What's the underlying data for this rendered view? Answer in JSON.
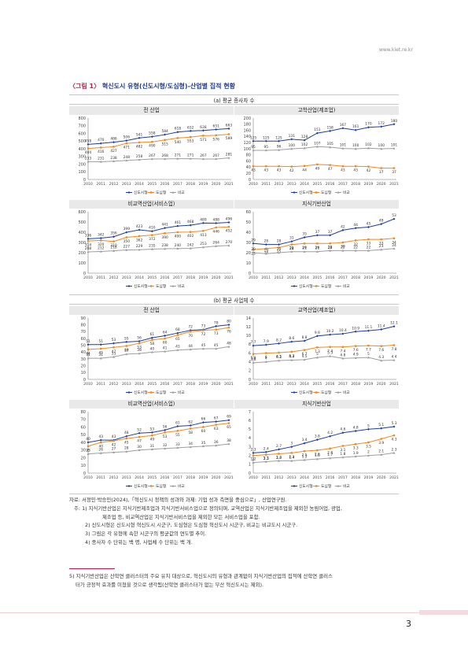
{
  "site": "www.kiet.re.kr",
  "figure": {
    "tag": "〈그림 1〉",
    "title": "혁신도시 유형(신도시형/도심형)-산업별 집적 현황"
  },
  "sections": {
    "a": "(a) 평균 종사자 수",
    "b": "(b) 평균 사업체 수"
  },
  "legend": [
    "신도시형",
    "도심형",
    "비교"
  ],
  "colors": {
    "s1": "#1f3d9a",
    "s2": "#f08a1e",
    "s3": "#9e9e9e"
  },
  "chart_data": [
    {
      "id": "a1",
      "type": "line",
      "title": "전 산업",
      "x": [
        "2010",
        "2011",
        "2012",
        "2013",
        "2014",
        "2015",
        "2016",
        "2017",
        "2018",
        "2019",
        "2020",
        "2021"
      ],
      "ylim": [
        0,
        800
      ],
      "yticks": [
        0,
        100,
        200,
        300,
        400,
        500,
        600,
        700,
        800
      ],
      "series": [
        {
          "name": "신도시형",
          "values": [
            458,
            470,
            486,
            506,
            541,
            558,
            584,
            618,
            632,
            638,
            651,
            663
          ]
        },
        {
          "name": "도심형",
          "values": [
            404,
            416,
            427,
            471,
            482,
            490,
            515,
            540,
            553,
            571,
            576,
            589
          ]
        },
        {
          "name": "비교",
          "values": [
            233,
            231,
            238,
            248,
            258,
            267,
            268,
            271,
            271,
            267,
            267,
            281
          ]
        }
      ]
    },
    {
      "id": "a2",
      "type": "line",
      "title": "고학산업(제조업)",
      "x": [
        "2010",
        "2011",
        "2012",
        "2013",
        "2014",
        "2015",
        "2016",
        "2017",
        "2018",
        "2019",
        "2020",
        "2021"
      ],
      "ylim": [
        0,
        200
      ],
      "yticks": [
        0,
        20,
        40,
        60,
        80,
        100,
        120,
        140,
        160,
        180,
        200
      ],
      "series": [
        {
          "name": "신도시형",
          "values": [
            125,
            125,
            125,
            131,
            128,
            151,
            158,
            167,
            161,
            170,
            172,
            180
          ]
        },
        {
          "name": "도심형",
          "values": [
            43,
            43,
            43,
            42,
            44,
            49,
            47,
            43,
            43,
            42,
            37,
            37
          ]
        },
        {
          "name": "비교",
          "values": [
            95,
            95,
            96,
            100,
            102,
            107,
            105,
            101,
            100,
            102,
            100,
            101
          ]
        }
      ]
    },
    {
      "id": "a3",
      "type": "line",
      "title": "비교역산업(서비스업)",
      "x": [
        "2010",
        "2011",
        "2012",
        "2013",
        "2014",
        "2015",
        "2016",
        "2017",
        "2018",
        "2019",
        "2020",
        "2021"
      ],
      "ylim": [
        0,
        600
      ],
      "yticks": [
        0,
        100,
        200,
        300,
        400,
        500,
        600
      ],
      "series": [
        {
          "name": "신도시형",
          "values": [
            336,
            342,
            356,
            399,
            423,
            410,
            441,
            461,
            468,
            489,
            488,
            496
          ]
        },
        {
          "name": "도심형",
          "values": [
            314,
            320,
            310,
            350,
            362,
            372,
            390,
            400,
            402,
            413,
            446,
            452
          ]
        },
        {
          "name": "비교",
          "values": [
            208,
            212,
            218,
            227,
            229,
            235,
            238,
            240,
            242,
            253,
            264,
            270
          ]
        }
      ]
    },
    {
      "id": "a4",
      "type": "line",
      "title": "지식기반산업",
      "x": [
        "2010",
        "2011",
        "2012",
        "2013",
        "2014",
        "2015",
        "2016",
        "2017",
        "2018",
        "2019",
        "2020",
        "2021"
      ],
      "ylim": [
        0,
        60
      ],
      "yticks": [
        0,
        10,
        20,
        30,
        40,
        50,
        60
      ],
      "series": [
        {
          "name": "신도시형",
          "values": [
            29,
            28,
            28,
            31,
            35,
            37,
            37,
            42,
            44,
            45,
            48,
            53
          ]
        },
        {
          "name": "도심형",
          "values": [
            23,
            24,
            25,
            28,
            29,
            29,
            29,
            30,
            32,
            33,
            33,
            34
          ]
        },
        {
          "name": "비교",
          "values": [
            20,
            19,
            20,
            21,
            21,
            21,
            22,
            22,
            22,
            22,
            23,
            24
          ]
        }
      ]
    },
    {
      "id": "b1",
      "type": "line",
      "title": "전 산업",
      "x": [
        "2010",
        "2011",
        "2012",
        "2013",
        "2014",
        "2015",
        "2016",
        "2017",
        "2018",
        "2019",
        "2020",
        "2021"
      ],
      "ylim": [
        0,
        90
      ],
      "yticks": [
        0,
        10,
        20,
        30,
        40,
        50,
        60,
        70,
        80,
        90
      ],
      "series": [
        {
          "name": "신도시형",
          "values": [
            51,
            51,
            53,
            55,
            56,
            61,
            64,
            68,
            72,
            73,
            78,
            80
          ]
        },
        {
          "name": "도심형",
          "values": [
            44,
            45,
            47,
            49,
            53,
            58,
            60,
            65,
            70,
            72,
            73,
            76
          ]
        },
        {
          "name": "비교",
          "values": [
            31,
            31,
            33,
            37,
            38,
            40,
            41,
            43,
            44,
            45,
            45,
            48
          ]
        }
      ]
    },
    {
      "id": "b2",
      "type": "line",
      "title": "교역산업(제조업)",
      "x": [
        "2010",
        "2011",
        "2012",
        "2013",
        "2014",
        "2015",
        "2016",
        "2017",
        "2018",
        "2019",
        "2020",
        "2021"
      ],
      "ylim": [
        0,
        14
      ],
      "yticks": [
        0,
        2,
        4,
        6,
        8,
        10,
        12,
        14
      ],
      "series": [
        {
          "name": "신도시형",
          "values": [
            7.7,
            7.9,
            8.2,
            8.6,
            8.8,
            9.9,
            10.2,
            10.4,
            10.9,
            11.1,
            11.4,
            12.1
          ]
        },
        {
          "name": "도심형",
          "values": [
            5.8,
            6.0,
            6.1,
            6.3,
            6.7,
            7.3,
            7.4,
            7.4,
            7.6,
            7.7,
            7.6,
            7.8
          ]
        },
        {
          "name": "비교",
          "values": [
            3.8,
            4.0,
            4.3,
            4.4,
            4.5,
            5.0,
            5.3,
            4.8,
            4.9,
            5.0,
            4.3,
            4.4
          ]
        }
      ]
    },
    {
      "id": "b3",
      "type": "line",
      "title": "비교역산업(서비스업)",
      "x": [
        "2010",
        "2011",
        "2012",
        "2013",
        "2014",
        "2015",
        "2016",
        "2017",
        "2018",
        "2019",
        "2020",
        "2021"
      ],
      "ylim": [
        0,
        80
      ],
      "yticks": [
        0,
        10,
        20,
        30,
        40,
        50,
        60,
        70,
        80
      ],
      "series": [
        {
          "name": "신도시형",
          "values": [
            40,
            43,
            43,
            48,
            52,
            53,
            56,
            61,
            62,
            66,
            67,
            69
          ]
        },
        {
          "name": "도심형",
          "values": [
            35,
            40,
            42,
            45,
            47,
            49,
            53,
            55,
            58,
            60,
            63,
            65
          ]
        },
        {
          "name": "비교",
          "values": [
            25,
            26,
            27,
            28,
            30,
            31,
            32,
            33,
            34,
            35,
            36,
            38
          ]
        }
      ]
    },
    {
      "id": "b4",
      "type": "line",
      "title": "지식기반산업",
      "x": [
        "2010",
        "2011",
        "2012",
        "2013",
        "2014",
        "2015",
        "2016",
        "2017",
        "2018",
        "2019",
        "2020",
        "2021"
      ],
      "ylim": [
        0,
        7
      ],
      "yticks": [
        0,
        1,
        2,
        3,
        4,
        5,
        6,
        7
      ],
      "series": [
        {
          "name": "신도시형",
          "values": [
            2.3,
            2.4,
            2.7,
            3.0,
            3.4,
            3.8,
            4.2,
            4.6,
            4.8,
            5.0,
            5.1,
            5.3
          ]
        },
        {
          "name": "도심형",
          "values": [
            2.0,
            2.1,
            2.2,
            2.3,
            2.5,
            2.6,
            2.8,
            3.1,
            3.3,
            3.5,
            3.9,
            4.3
          ]
        },
        {
          "name": "비교",
          "values": [
            1.2,
            1.3,
            1.4,
            1.4,
            1.5,
            1.6,
            1.7,
            1.8,
            1.9,
            2.0,
            2.1,
            2.3
          ]
        }
      ]
    }
  ],
  "notes": [
    "자료: 서정민·박승민(2024),「혁신도시 정책의 성과와 과제: 기업 성과 측면을 중심으로」, 산업연구원.",
    "주: 1) 지식기반산업은 지식기반제조업과 지식기반서비스업으로 정의되며, 교역산업은 지식기반제조업을 제외한 농림어업, 광업,",
    "제조업 등, 비교역산업은 지식기반서비스업을 제외한 모든 서비스업을 포함.",
    "2) 신도시형은 신도시형 혁신도시 시군구, 도심형은 도심형 혁신도시 시군구, 비교는 비교도시 시군구.",
    "3) 그림은 각 유형에 속한 시군구의 평균값의 연도별 추이.",
    "4) 종사자 수 단위는 백 명, 사업체 수 단위는 백 개."
  ],
  "footnote": {
    "line1": "5) 지식기반산업은 산학연 클러스터의 주요 유치 대상으로, 혁신도시의 유형과 관계없이 지식기반산업의 집적에 산학연 클러스",
    "line2": "터가 긍정적 효과를 미쳤을 것으로 생각됨(산학연 클러스터가 없는 부산 혁신도시는 제외)."
  },
  "page_number": "3"
}
